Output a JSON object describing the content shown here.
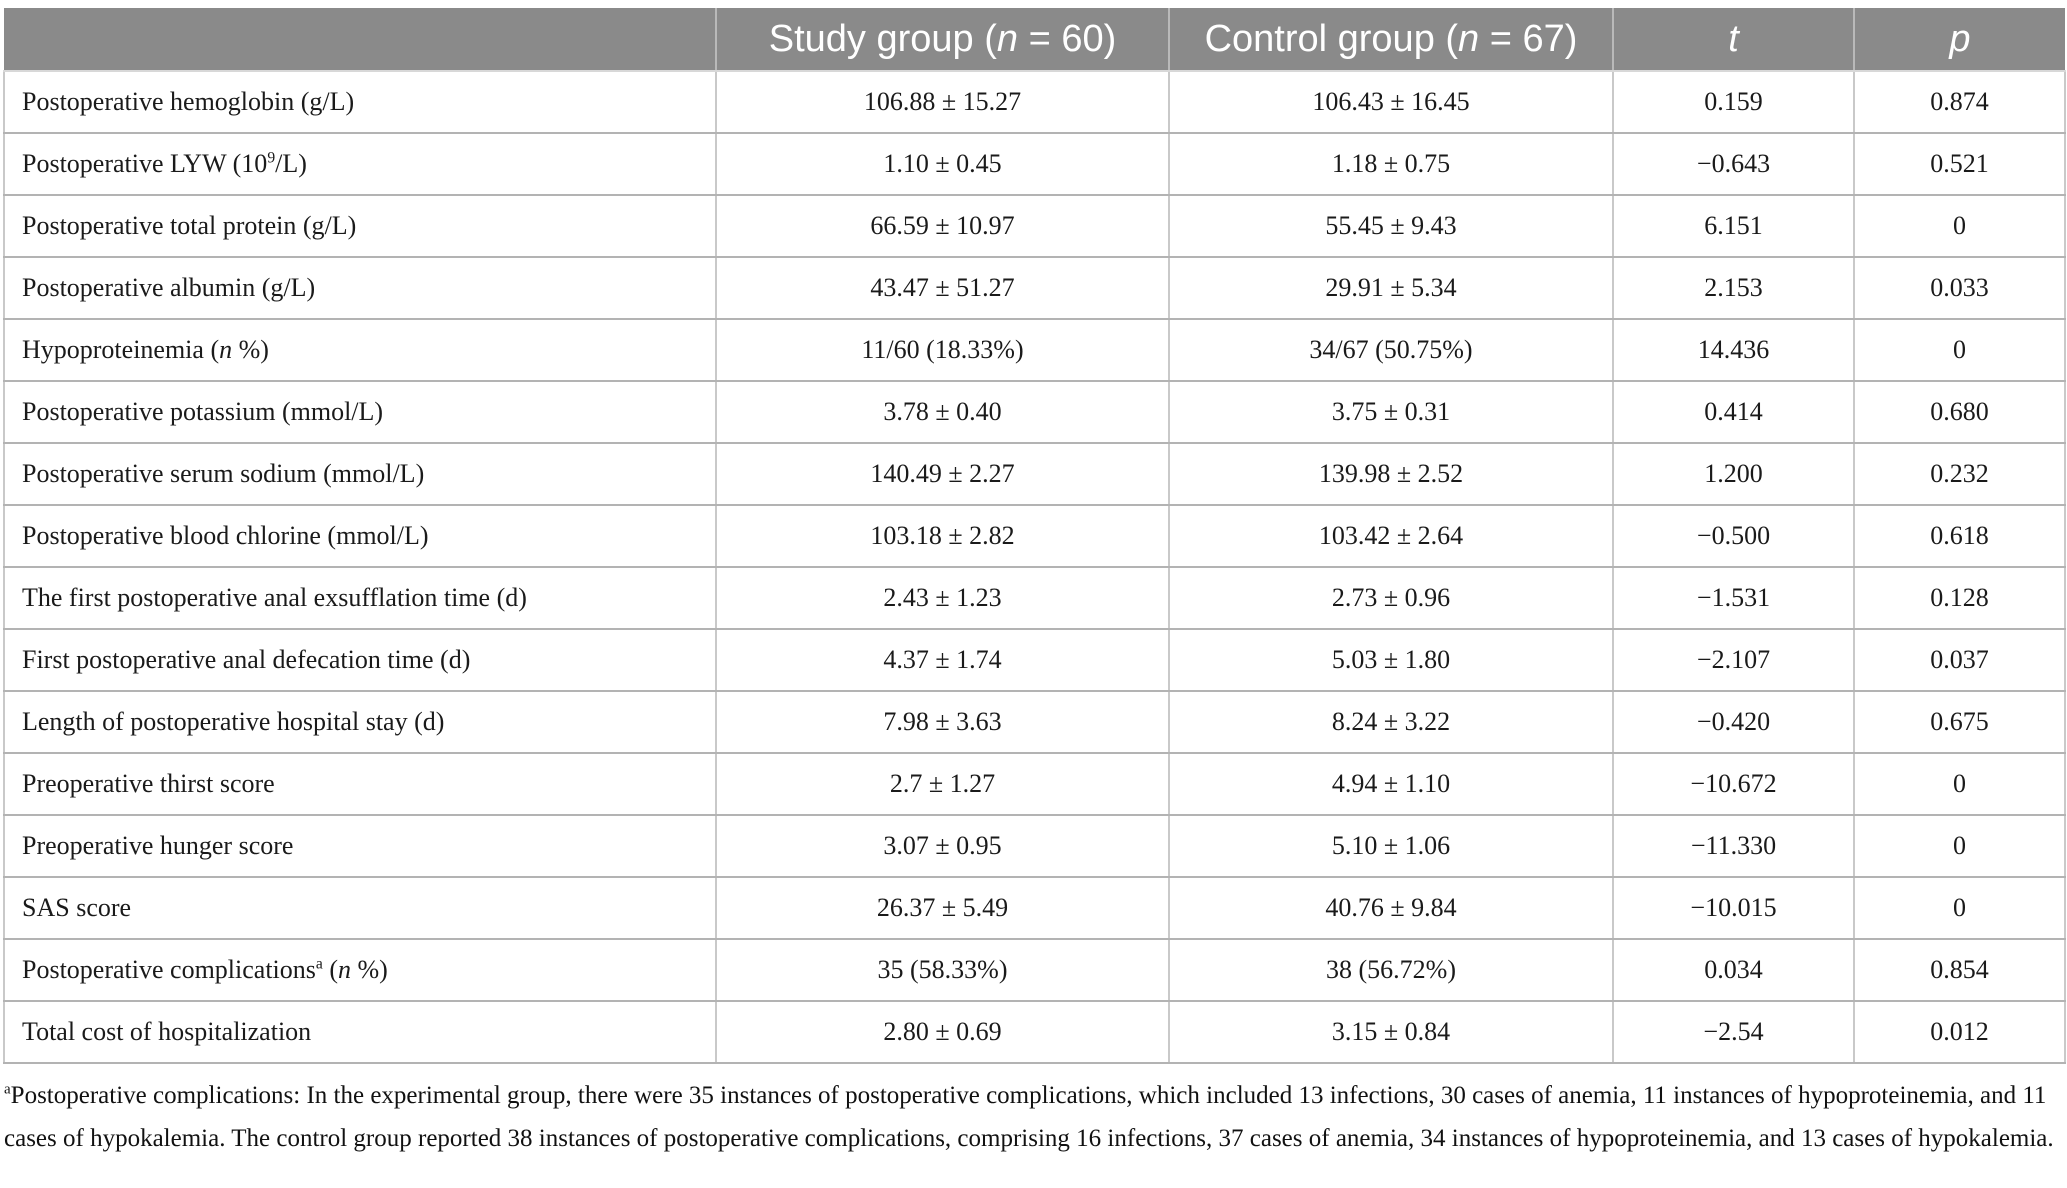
{
  "colors": {
    "header_bg": "#8a8a8a",
    "header_text": "#ffffff",
    "body_text": "#1a1a1a",
    "grid_line_horizontal": "#b3b3b3",
    "grid_line_vertical": "#c9c9c9"
  },
  "table": {
    "headers": [
      "",
      "Study group (*n* = 60)",
      "Control group (*n* = 67)",
      "*t*",
      "*p*"
    ],
    "rows": [
      [
        "Postoperative hemoglobin (g/L)",
        "106.88 ± 15.27",
        "106.43 ± 16.45",
        "0.159",
        "0.874"
      ],
      [
        "Postoperative LYW (10^9^/L)",
        "1.10 ± 0.45",
        "1.18 ± 0.75",
        "−0.643",
        "0.521"
      ],
      [
        "Postoperative total protein (g/L)",
        "66.59 ± 10.97",
        "55.45 ± 9.43",
        "6.151",
        "0"
      ],
      [
        "Postoperative albumin (g/L)",
        "43.47 ± 51.27",
        "29.91 ± 5.34",
        "2.153",
        "0.033"
      ],
      [
        "Hypoproteinemia (*n* %)",
        "11/60 (18.33%)",
        "34/67 (50.75%)",
        "14.436",
        "0"
      ],
      [
        "Postoperative potassium (mmol/L)",
        "3.78 ± 0.40",
        "3.75 ± 0.31",
        "0.414",
        "0.680"
      ],
      [
        "Postoperative serum sodium (mmol/L)",
        "140.49 ± 2.27",
        "139.98 ± 2.52",
        "1.200",
        "0.232"
      ],
      [
        "Postoperative blood chlorine (mmol/L)",
        "103.18 ± 2.82",
        "103.42 ± 2.64",
        "−0.500",
        "0.618"
      ],
      [
        "The first postoperative anal exsufflation time (d)",
        "2.43 ± 1.23",
        "2.73 ± 0.96",
        "−1.531",
        "0.128"
      ],
      [
        "First postoperative anal defecation time (d)",
        "4.37 ± 1.74",
        "5.03 ± 1.80",
        "−2.107",
        "0.037"
      ],
      [
        "Length of postoperative hospital stay (d)",
        "7.98 ± 3.63",
        "8.24 ± 3.22",
        "−0.420",
        "0.675"
      ],
      [
        "Preoperative thirst score",
        "2.7 ± 1.27",
        "4.94 ± 1.10",
        "−10.672",
        "0"
      ],
      [
        "Preoperative hunger score",
        "3.07 ± 0.95",
        "5.10 ± 1.06",
        "−11.330",
        "0"
      ],
      [
        "SAS score",
        "26.37 ± 5.49",
        "40.76 ± 9.84",
        "−10.015",
        "0"
      ],
      [
        "Postoperative complications^a^ (*n* %)",
        "35 (58.33%)",
        "38 (56.72%)",
        "0.034",
        "0.854"
      ],
      [
        "Total cost of hospitalization",
        "2.80 ± 0.69",
        "3.15 ± 0.84",
        "−2.54",
        "0.012"
      ]
    ]
  },
  "footnote": "^a^Postoperative complications: In the experimental group, there were 35 instances of postoperative complications, which included 13 infections, 30 cases of anemia, 11 instances of hypoproteinemia, and 11 cases of hypokalemia. The control group reported 38 instances of postoperative complications, comprising 16 infections, 37 cases of anemia, 34 instances of hypoproteinemia, and 13 cases of hypokalemia."
}
